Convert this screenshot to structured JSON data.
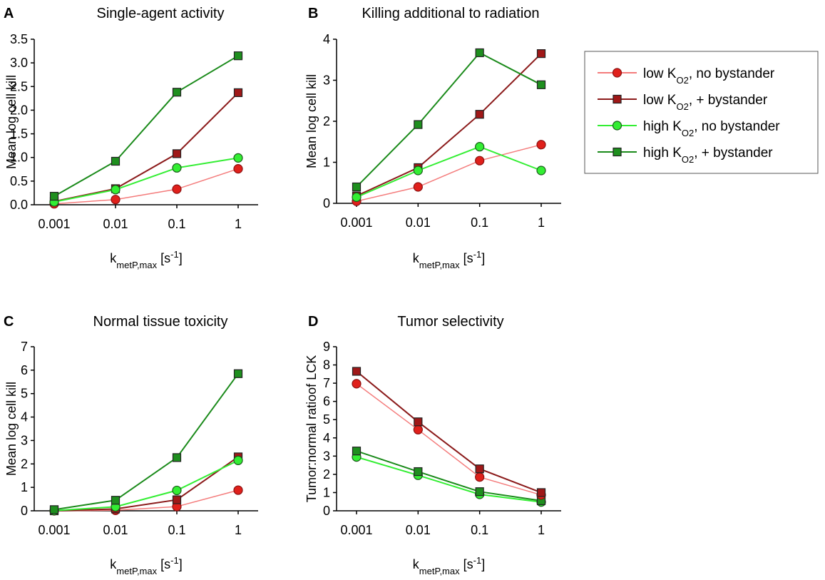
{
  "legend": {
    "items": [
      {
        "key": "lowNo",
        "prefix": "low K",
        "sub": "O2",
        "suffix": ", no bystander"
      },
      {
        "key": "lowBy",
        "prefix": "low K",
        "sub": "O2",
        "suffix": ", + bystander"
      },
      {
        "key": "highNo",
        "prefix": "high K",
        "sub": "O2",
        "suffix": ", no bystander"
      },
      {
        "key": "highBy",
        "prefix": "high K",
        "sub": "O2",
        "suffix": ", + bystander"
      }
    ]
  },
  "series_styles": {
    "lowNo": {
      "color": "#f47c7c",
      "marker": "circle",
      "fill": "#e0201b"
    },
    "lowBy": {
      "color": "#8b1a1a",
      "marker": "square",
      "fill": "#a01818"
    },
    "highNo": {
      "color": "#33ee33",
      "marker": "circle",
      "fill": "#33ee33"
    },
    "highBy": {
      "color": "#1a8a1a",
      "marker": "square",
      "fill": "#1e8f1e"
    }
  },
  "chart_data": [
    {
      "type": "line",
      "panel": "A",
      "title": "Single-agent activity",
      "xlabel_main": "k",
      "xlabel_sub": "metP,max",
      "xlabel_unit_pre": " [s",
      "xlabel_unit_sup": "-1",
      "xlabel_unit_post": "]",
      "ylabel": "Mean log cell kill",
      "categories": [
        "0.001",
        "0.01",
        "0.1",
        "1"
      ],
      "ylim": [
        0,
        3.5
      ],
      "yticks": [
        "0.0",
        "0.5",
        "1.0",
        "1.5",
        "2.0",
        "2.5",
        "3.0",
        "3.5"
      ],
      "series": [
        {
          "key": "lowNo",
          "values": [
            0.02,
            0.11,
            0.33,
            0.76
          ]
        },
        {
          "key": "lowBy",
          "values": [
            0.07,
            0.34,
            1.08,
            2.37
          ]
        },
        {
          "key": "highNo",
          "values": [
            0.06,
            0.32,
            0.78,
            0.99
          ]
        },
        {
          "key": "highBy",
          "values": [
            0.18,
            0.92,
            2.38,
            3.15
          ]
        }
      ]
    },
    {
      "type": "line",
      "panel": "B",
      "title": "Killing additional to radiation",
      "xlabel_main": "k",
      "xlabel_sub": "metP,max",
      "xlabel_unit_pre": " [s",
      "xlabel_unit_sup": "-1",
      "xlabel_unit_post": "]",
      "ylabel": "Mean log cell kill",
      "categories": [
        "0.001",
        "0.01",
        "0.1",
        "1"
      ],
      "ylim": [
        0,
        4
      ],
      "yticks": [
        "0",
        "1",
        "2",
        "3",
        "4"
      ],
      "series": [
        {
          "key": "lowNo",
          "values": [
            0.05,
            0.4,
            1.04,
            1.43
          ]
        },
        {
          "key": "lowBy",
          "values": [
            0.18,
            0.87,
            2.17,
            3.65
          ]
        },
        {
          "key": "highNo",
          "values": [
            0.15,
            0.8,
            1.38,
            0.8
          ]
        },
        {
          "key": "highBy",
          "values": [
            0.4,
            1.92,
            3.67,
            2.89
          ]
        }
      ]
    },
    {
      "type": "line",
      "panel": "C",
      "title": "Normal tissue toxicity",
      "xlabel_main": "k",
      "xlabel_sub": "metP,max",
      "xlabel_unit_pre": " [s",
      "xlabel_unit_sup": "-1",
      "xlabel_unit_post": "]",
      "ylabel": "Mean log cell kill",
      "categories": [
        "0.001",
        "0.01",
        "0.1",
        "1"
      ],
      "ylim": [
        0,
        7
      ],
      "yticks": [
        "0",
        "1",
        "2",
        "3",
        "4",
        "5",
        "6",
        "7"
      ],
      "series": [
        {
          "key": "lowNo",
          "values": [
            0.0,
            0.02,
            0.18,
            0.88
          ]
        },
        {
          "key": "lowBy",
          "values": [
            0.0,
            0.08,
            0.47,
            2.3
          ]
        },
        {
          "key": "highNo",
          "values": [
            0.01,
            0.17,
            0.87,
            2.15
          ]
        },
        {
          "key": "highBy",
          "values": [
            0.05,
            0.45,
            2.27,
            5.85
          ]
        }
      ]
    },
    {
      "type": "line",
      "panel": "D",
      "title": "Tumor selectivity",
      "xlabel_main": "k",
      "xlabel_sub": "metP,max",
      "xlabel_unit_pre": " [s",
      "xlabel_unit_sup": "-1",
      "xlabel_unit_post": "]",
      "ylabel": "Tumor:normal ratioof LCK",
      "categories": [
        "0.001",
        "0.01",
        "0.1",
        "1"
      ],
      "ylim": [
        0,
        9
      ],
      "yticks": [
        "0",
        "1",
        "2",
        "3",
        "4",
        "5",
        "6",
        "7",
        "8",
        "9"
      ],
      "series": [
        {
          "key": "highNo",
          "values": [
            2.95,
            1.95,
            0.9,
            0.48
          ]
        },
        {
          "key": "highBy",
          "values": [
            3.28,
            2.15,
            1.05,
            0.55
          ]
        },
        {
          "key": "lowNo",
          "values": [
            6.97,
            4.45,
            1.85,
            0.87
          ]
        },
        {
          "key": "lowBy",
          "values": [
            7.65,
            4.88,
            2.3,
            1.0
          ]
        }
      ]
    }
  ]
}
